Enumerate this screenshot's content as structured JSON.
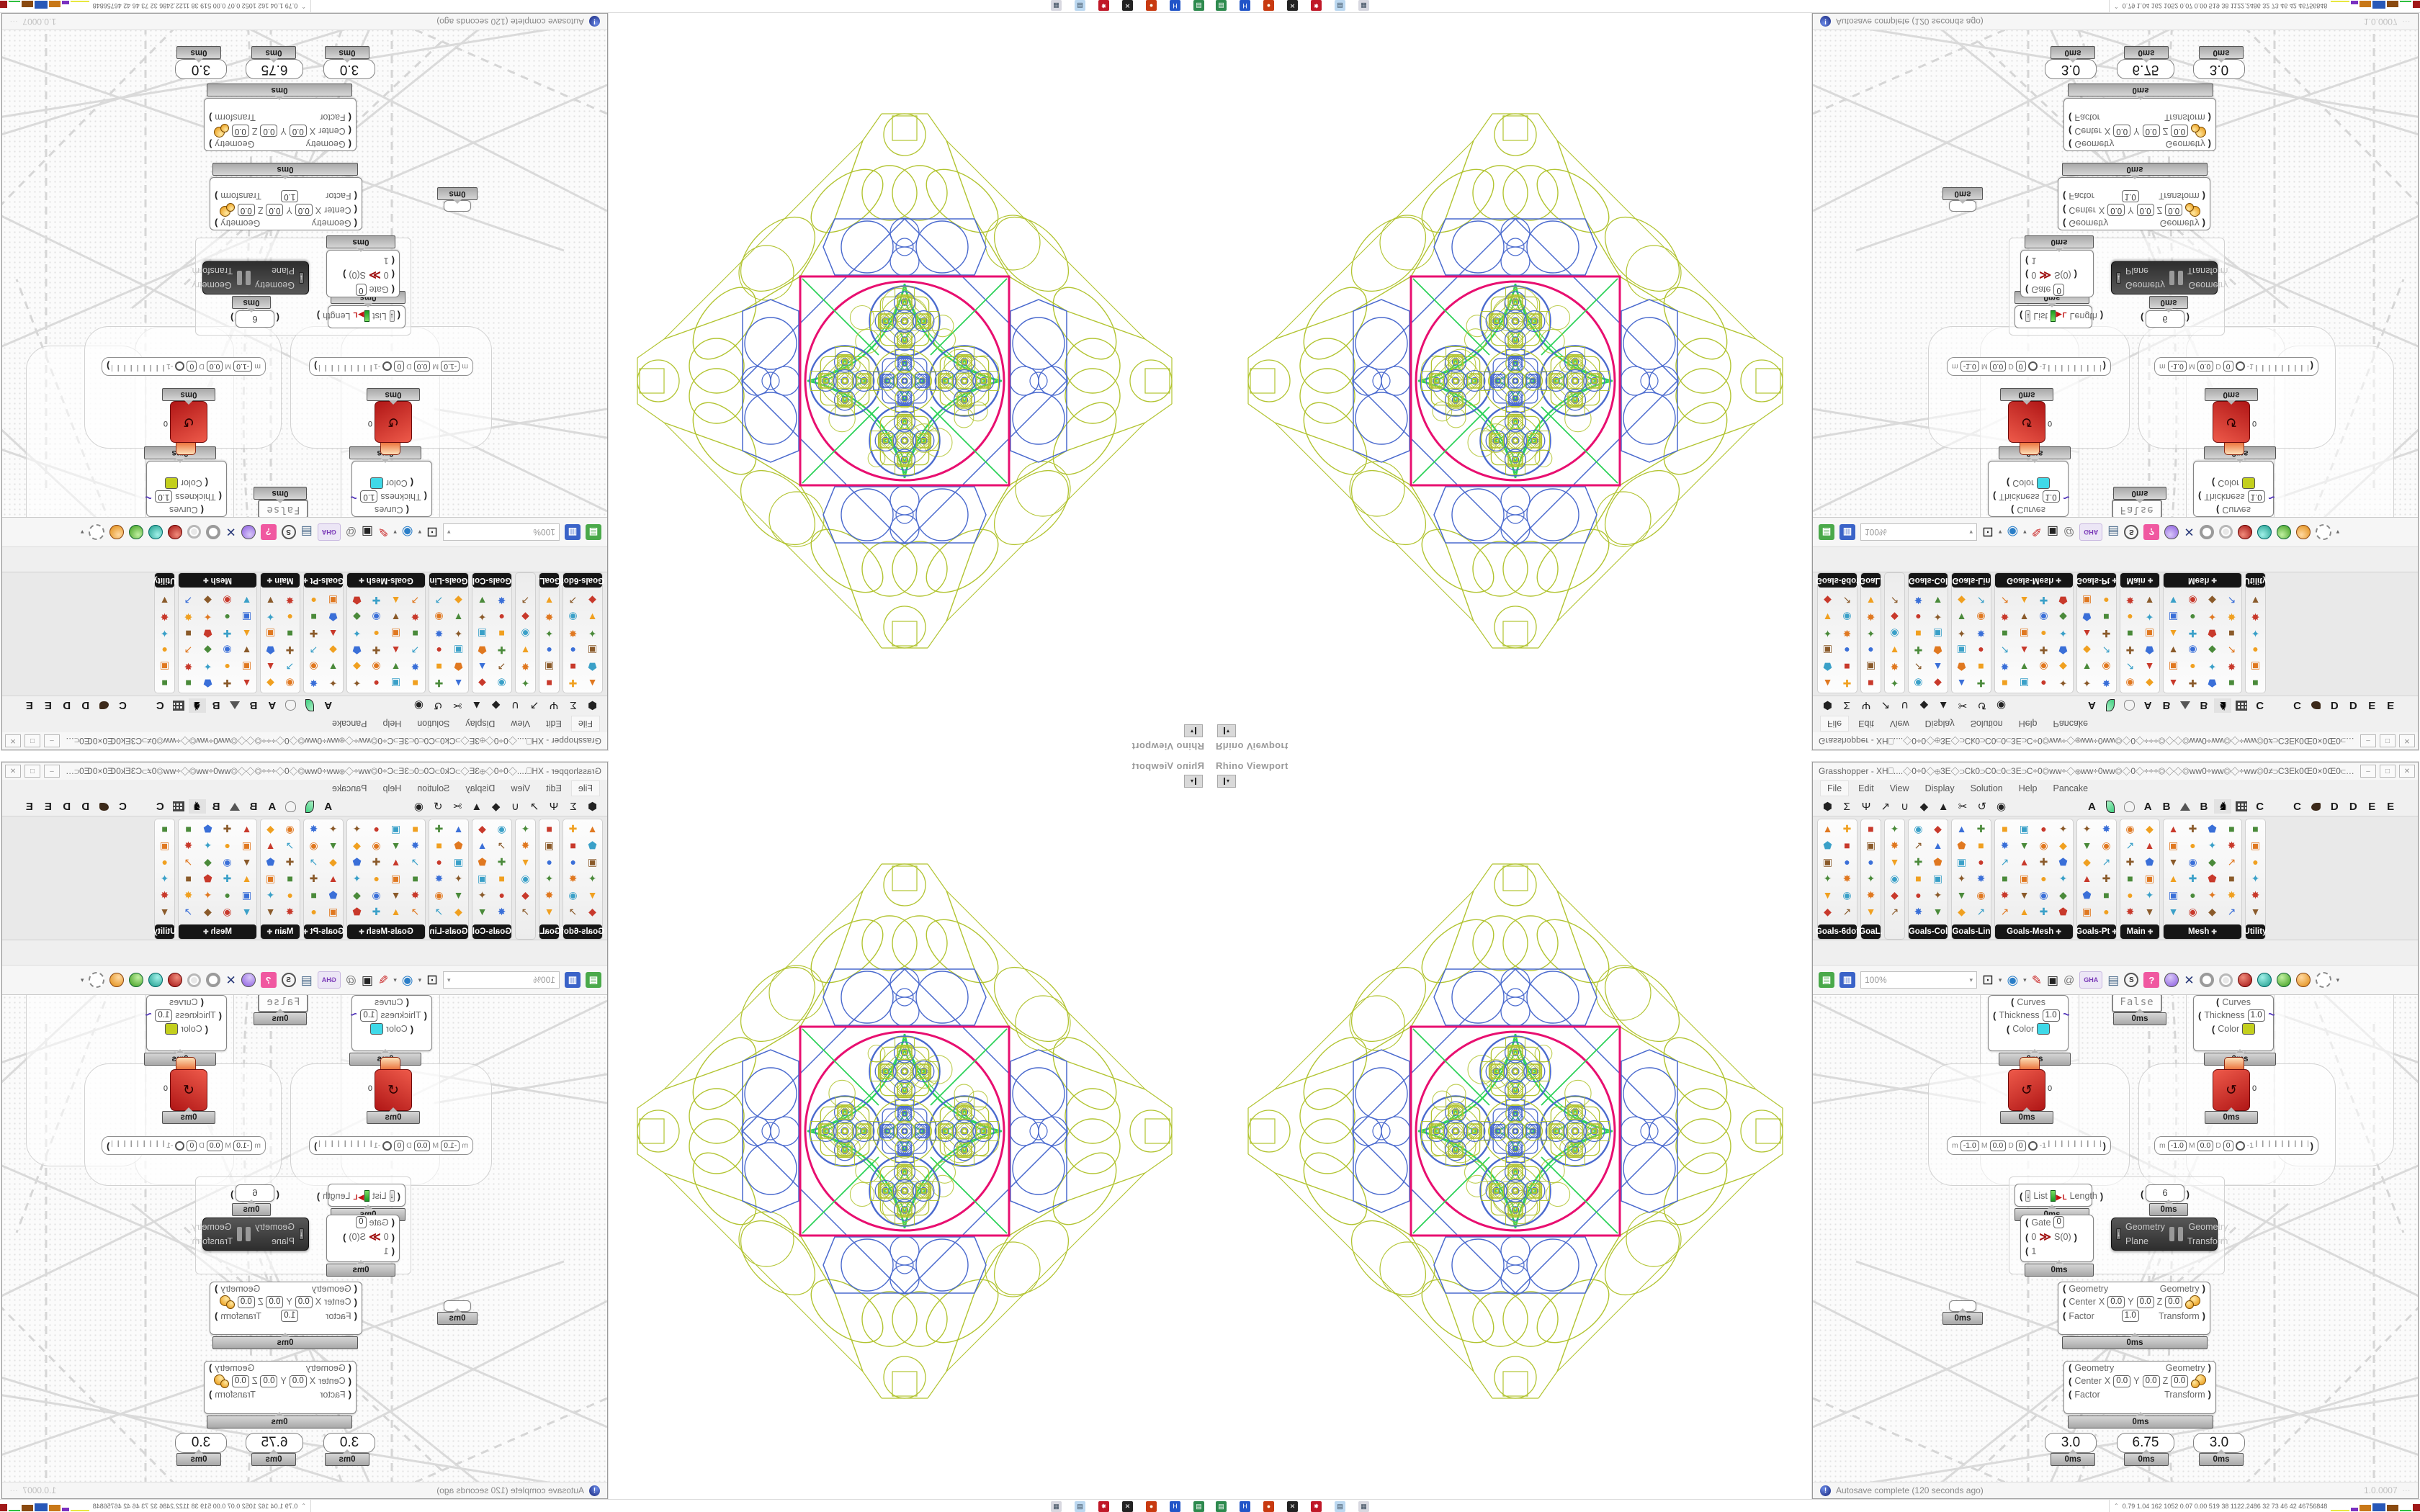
{
  "q": {
    "viewport": {
      "label": "Rhino Viewport"
    },
    "window": {
      "title": "Grasshopper - XH⎕....◇0÷0◇⊕3E◇⊃Ck0⊃C0⊂0⊂3E⊃C÷0◎ww÷◇⊛ww÷0ww◎◇0◇÷÷÷◎◇◇◎ww0÷ww◎◇÷ww◎0≠⊃C3Ek0Œ0×0Œ0⊂3E⊃C÷0◎...",
      "buttons": {
        "minimize": "–",
        "maximize": "□",
        "close": "✕"
      },
      "menu": [
        "File",
        "Edit",
        "View",
        "Display",
        "Solution",
        "Help",
        "Pancake"
      ],
      "main_tabs": [
        "⬢",
        "Σ",
        "Ψ",
        "↗",
        "∪",
        "◆",
        "▲",
        "✂",
        "↺",
        "◉"
      ],
      "plugin_tabs": [
        "A",
        "leaf",
        "paw",
        "A",
        "B",
        "mountain",
        "B",
        "kangaroo",
        "grid",
        "C",
        "dot",
        "C",
        "bird",
        "D",
        "D",
        "E",
        "E",
        "checker"
      ],
      "palette_groups": [
        {
          "label": "Goals-6dof",
          "cols": 2,
          "more": false
        },
        {
          "label": "GoaL.",
          "cols": 1,
          "more": false
        },
        {
          "label": "",
          "cols": 1,
          "more": false
        },
        {
          "label": "Goals-Col",
          "cols": 2,
          "more": false
        },
        {
          "label": "Goals-Lin",
          "cols": 2,
          "more": false
        },
        {
          "label": "Goals-Mesh",
          "cols": 4,
          "more": true
        },
        {
          "label": "Goals-Pt",
          "cols": 2,
          "more": true
        },
        {
          "label": "Main",
          "cols": 2,
          "more": true
        },
        {
          "label": "Mesh",
          "cols": 4,
          "more": true
        },
        {
          "label": "Utility",
          "cols": 1,
          "more": false
        }
      ],
      "toolbar": {
        "zoom_level": "100%",
        "gha_label": "GHA",
        "find_label": "S",
        "gift_label": "?"
      },
      "status": {
        "message": "Autosave complete (120 seconds ago)",
        "version": "1.0.0007"
      }
    },
    "canvas": {
      "profiler": "0ms",
      "preview": {
        "in1": "Curves",
        "in2": "Thickness",
        "thickness_value": "1.0",
        "in3": "Color",
        "color_a": "#3fd9e8",
        "color_b": "#c3cf1d"
      },
      "toggle_false": "False",
      "red_output": "0",
      "bar": {
        "min_label": "m",
        "min": "-1.0",
        "max_label": "M",
        "max": "0.0",
        "d_label": "D",
        "d": "0",
        "knob_label": "-1"
      },
      "list_length": {
        "in": "List",
        "out": "Length",
        "icon_letter": "L"
      },
      "panel_six": "6",
      "gate": {
        "in1": "Gate",
        "in1_val": "0",
        "in2": "0",
        "in3": "1",
        "out": "S(0)"
      },
      "transform_dark": {
        "in1": "Geometry",
        "in2": "Plane",
        "out1": "Geometry",
        "out2": "Transform"
      },
      "scale": {
        "in1": "Geometry",
        "in2": "Center",
        "x": "X",
        "x_val": "0.0",
        "y": "Y",
        "y_val": "0.0",
        "z": "Z",
        "z_val": "0.0",
        "in3": "Factor",
        "factor_val": "1.0",
        "out1": "Geometry",
        "out2": "Transform"
      },
      "sliders": [
        "3.0",
        "6.75",
        "3.0"
      ]
    },
    "taskbar": {
      "stats": "0.79 1.04  162 1052 0.07 0.00  519   38  1122.2486  32    73    46    42  46756848"
    },
    "pattern": {
      "magenta": "#e80f70",
      "green": "#2ed25a",
      "blue": "#4a6ace",
      "chartreuse": "#b2c431"
    }
  }
}
